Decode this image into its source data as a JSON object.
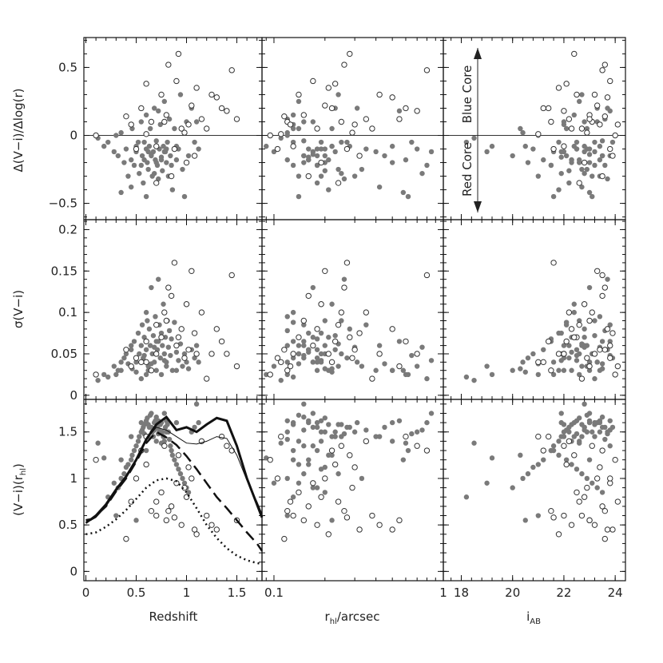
{
  "chart_data": {
    "type": "scatter",
    "layout": "3x3 panel grid",
    "columns": [
      {
        "xlabel": "Redshift",
        "xlim": [
          -0.02,
          1.75
        ],
        "xticks": [
          0,
          0.5,
          1,
          1.5
        ],
        "xticklabels": [
          "0",
          "0.5",
          "1",
          "1.5"
        ],
        "xscale": "linear"
      },
      {
        "xlabel": "r_hl/arcsec",
        "xlabel_main": "r",
        "xlabel_sub": "hl",
        "xlabel_rest": "/arcsec",
        "xlim": [
          0.085,
          1.0
        ],
        "xticks": [
          0.1,
          1
        ],
        "xticklabels": [
          "0.1",
          "1"
        ],
        "xscale": "log"
      },
      {
        "xlabel": "i_AB",
        "xlabel_main": "i",
        "xlabel_sub": "AB",
        "xlim": [
          17.3,
          24.4
        ],
        "xticks": [
          18,
          20,
          22,
          24
        ],
        "xticklabels": [
          "18",
          "20",
          "22",
          "24"
        ],
        "xscale": "linear"
      }
    ],
    "rows": [
      {
        "ylabel": "Δ(V−i)/Δlog(r)",
        "ylim": [
          -0.62,
          0.72
        ],
        "yticks": [
          -0.5,
          0,
          0.5
        ],
        "yticklabels": [
          "−0.5",
          "0",
          "0.5"
        ],
        "zero_line": true
      },
      {
        "ylabel": "σ(V−i)",
        "ylim": [
          -0.005,
          0.212
        ],
        "yticks": [
          0,
          0.05,
          0.1,
          0.15,
          0.2
        ],
        "yticklabels": [
          "0",
          "0.05",
          "0.1",
          "0.15",
          "0.2"
        ],
        "zero_line": false
      },
      {
        "ylabel": "(V−i)(r_hl)",
        "ylabel_main": "(V−i)(r",
        "ylabel_sub": "hl",
        "ylabel_end": ")",
        "ylim": [
          -0.1,
          1.85
        ],
        "yticks": [
          0,
          0.5,
          1,
          1.5
        ],
        "yticklabels": [
          "0",
          "0.5",
          "1",
          "1.5"
        ],
        "zero_line": false
      }
    ],
    "annotations": {
      "blue_core": "Blue Core",
      "red_core": "Red Core"
    },
    "series": [
      {
        "name": "filled",
        "marker": "filled circle",
        "color": "#7a7a7a"
      },
      {
        "name": "open",
        "marker": "open circle",
        "color": "#333333"
      }
    ],
    "model_curves": [
      {
        "style": "thick solid",
        "x": [
          0,
          0.05,
          0.1,
          0.2,
          0.3,
          0.4,
          0.5,
          0.6,
          0.7,
          0.8,
          0.9,
          1.0,
          1.1,
          1.2,
          1.3,
          1.4,
          1.5,
          1.6,
          1.7,
          1.75
        ],
        "y": [
          0.55,
          0.56,
          0.6,
          0.72,
          0.88,
          1.02,
          1.2,
          1.42,
          1.58,
          1.66,
          1.52,
          1.55,
          1.5,
          1.58,
          1.65,
          1.62,
          1.35,
          1.0,
          0.72,
          0.58
        ]
      },
      {
        "style": "thin solid",
        "x": [
          0,
          0.1,
          0.2,
          0.3,
          0.4,
          0.5,
          0.6,
          0.7,
          0.8,
          0.9,
          1.0,
          1.1,
          1.2,
          1.3,
          1.4,
          1.5,
          1.6,
          1.7,
          1.75
        ],
        "y": [
          0.52,
          0.58,
          0.7,
          0.86,
          1.02,
          1.2,
          1.42,
          1.55,
          1.52,
          1.45,
          1.38,
          1.37,
          1.4,
          1.45,
          1.43,
          1.25,
          0.98,
          0.75,
          0.62
        ]
      },
      {
        "style": "dashed",
        "x": [
          0,
          0.1,
          0.2,
          0.3,
          0.4,
          0.5,
          0.6,
          0.7,
          0.8,
          0.9,
          1.0,
          1.1,
          1.2,
          1.3,
          1.4,
          1.5,
          1.6,
          1.7,
          1.75
        ],
        "y": [
          0.52,
          0.6,
          0.7,
          0.86,
          1.0,
          1.18,
          1.38,
          1.5,
          1.44,
          1.36,
          1.24,
          1.1,
          0.95,
          0.8,
          0.68,
          0.55,
          0.42,
          0.3,
          0.22
        ]
      },
      {
        "style": "dotted",
        "x": [
          0,
          0.1,
          0.2,
          0.3,
          0.4,
          0.5,
          0.6,
          0.7,
          0.8,
          0.9,
          1.0,
          1.1,
          1.2,
          1.3,
          1.4,
          1.5,
          1.6,
          1.7,
          1.75
        ],
        "y": [
          0.4,
          0.42,
          0.48,
          0.56,
          0.66,
          0.78,
          0.9,
          0.98,
          1.0,
          0.97,
          0.85,
          0.68,
          0.5,
          0.36,
          0.25,
          0.17,
          0.12,
          0.09,
          0.08
        ]
      }
    ],
    "points": [
      [
        0.12,
        -0.02,
        0.018,
        1.38,
        0.11,
        18.5,
        0
      ],
      [
        0.18,
        -0.08,
        0.025,
        1.22,
        0.09,
        19.2,
        0
      ],
      [
        0.22,
        -0.05,
        0.022,
        0.8,
        0.13,
        18.2,
        0
      ],
      [
        0.28,
        -0.12,
        0.035,
        0.95,
        0.1,
        19.0,
        0
      ],
      [
        0.32,
        -0.15,
        0.03,
        0.9,
        0.18,
        20.0,
        0
      ],
      [
        0.35,
        0.02,
        0.04,
        1.0,
        0.12,
        20.4,
        0
      ],
      [
        0.38,
        -0.2,
        0.045,
        1.05,
        0.15,
        20.6,
        0
      ],
      [
        0.4,
        -0.1,
        0.05,
        1.12,
        0.2,
        20.8,
        0
      ],
      [
        0.42,
        -0.3,
        0.038,
        1.15,
        0.14,
        21.0,
        0
      ],
      [
        0.45,
        -0.18,
        0.055,
        1.2,
        0.16,
        21.2,
        0
      ],
      [
        0.46,
        0.05,
        0.032,
        1.25,
        0.22,
        20.3,
        0
      ],
      [
        0.48,
        -0.22,
        0.065,
        1.3,
        0.13,
        21.5,
        0
      ],
      [
        0.5,
        -0.12,
        0.04,
        1.35,
        0.17,
        21.6,
        0
      ],
      [
        0.52,
        -0.05,
        0.075,
        1.4,
        0.19,
        21.8,
        0
      ],
      [
        0.53,
        -0.28,
        0.05,
        1.45,
        0.25,
        21.9,
        0
      ],
      [
        0.55,
        0.1,
        0.06,
        1.5,
        0.12,
        22.0,
        0
      ],
      [
        0.56,
        -0.15,
        0.085,
        1.52,
        0.15,
        22.1,
        0
      ],
      [
        0.57,
        -0.35,
        0.045,
        1.55,
        0.18,
        22.2,
        0
      ],
      [
        0.58,
        -0.18,
        0.07,
        1.58,
        0.21,
        22.3,
        0
      ],
      [
        0.6,
        0.15,
        0.1,
        1.6,
        0.13,
        22.4,
        0
      ],
      [
        0.6,
        -0.1,
        0.055,
        1.62,
        0.16,
        22.5,
        0
      ],
      [
        0.61,
        -0.2,
        0.09,
        1.65,
        0.2,
        22.6,
        0
      ],
      [
        0.62,
        -0.25,
        0.035,
        1.58,
        0.24,
        22.7,
        0
      ],
      [
        0.63,
        -0.08,
        0.08,
        1.55,
        0.28,
        22.8,
        0
      ],
      [
        0.64,
        0.05,
        0.06,
        1.68,
        0.14,
        22.9,
        0
      ],
      [
        0.65,
        -0.14,
        0.13,
        1.7,
        0.17,
        23.0,
        0
      ],
      [
        0.66,
        -0.3,
        0.05,
        1.5,
        0.19,
        23.1,
        0
      ],
      [
        0.67,
        -0.12,
        0.072,
        1.45,
        0.23,
        23.2,
        0
      ],
      [
        0.68,
        0.2,
        0.04,
        1.6,
        0.31,
        23.3,
        0
      ],
      [
        0.69,
        -0.18,
        0.095,
        1.62,
        0.12,
        23.4,
        0
      ],
      [
        0.7,
        -0.04,
        0.065,
        1.66,
        0.15,
        23.5,
        0
      ],
      [
        0.71,
        -0.22,
        0.055,
        1.55,
        0.18,
        23.6,
        0
      ],
      [
        0.72,
        -0.32,
        0.14,
        1.48,
        0.26,
        23.7,
        0
      ],
      [
        0.73,
        -0.1,
        0.085,
        1.52,
        0.35,
        23.8,
        0
      ],
      [
        0.74,
        0.08,
        0.045,
        1.58,
        0.13,
        22.0,
        0
      ],
      [
        0.75,
        -0.16,
        0.075,
        1.6,
        0.16,
        21.9,
        0
      ],
      [
        0.76,
        -0.26,
        0.06,
        1.5,
        0.2,
        22.2,
        0
      ],
      [
        0.77,
        -0.08,
        0.11,
        1.45,
        0.22,
        22.4,
        0
      ],
      [
        0.78,
        0.25,
        0.05,
        1.4,
        0.14,
        22.6,
        0
      ],
      [
        0.79,
        -0.12,
        0.07,
        1.55,
        0.17,
        22.8,
        0
      ],
      [
        0.8,
        -0.2,
        0.04,
        1.62,
        0.19,
        23.0,
        0
      ],
      [
        0.81,
        -0.05,
        0.09,
        1.58,
        0.25,
        23.2,
        0
      ],
      [
        0.82,
        -0.3,
        0.058,
        1.5,
        0.3,
        23.4,
        0
      ],
      [
        0.83,
        0.12,
        0.078,
        1.42,
        0.12,
        23.6,
        0
      ],
      [
        0.84,
        -0.15,
        0.048,
        1.35,
        0.15,
        23.8,
        0
      ],
      [
        0.85,
        -0.22,
        0.068,
        1.3,
        0.18,
        21.5,
        0
      ],
      [
        0.86,
        -0.4,
        0.03,
        1.25,
        0.21,
        21.8,
        0
      ],
      [
        0.88,
        0.05,
        0.088,
        1.2,
        0.13,
        22.1,
        0
      ],
      [
        0.9,
        -0.18,
        0.052,
        1.15,
        0.16,
        22.3,
        0
      ],
      [
        0.92,
        -0.1,
        0.042,
        1.1,
        0.19,
        22.5,
        0
      ],
      [
        0.94,
        0.3,
        0.062,
        1.05,
        0.24,
        22.7,
        0
      ],
      [
        0.96,
        -0.25,
        0.035,
        1.0,
        0.33,
        22.9,
        0
      ],
      [
        0.98,
        -0.45,
        0.05,
        0.95,
        0.14,
        23.1,
        0
      ],
      [
        1.0,
        0.1,
        0.04,
        0.9,
        0.17,
        23.3,
        0
      ],
      [
        1.02,
        -0.15,
        0.032,
        0.85,
        0.2,
        23.5,
        0
      ],
      [
        1.05,
        0.2,
        0.055,
        1.5,
        0.23,
        23.7,
        0
      ],
      [
        1.08,
        -0.05,
        0.045,
        1.55,
        0.27,
        23.9,
        0
      ],
      [
        1.1,
        0.1,
        0.06,
        1.8,
        0.15,
        22.8,
        0
      ],
      [
        1.12,
        -0.1,
        0.04,
        1.6,
        0.18,
        23.0,
        0
      ],
      [
        0.3,
        0.0,
        0.025,
        0.6,
        0.12,
        21.0,
        0
      ],
      [
        0.5,
        -0.08,
        0.028,
        0.55,
        0.22,
        20.5,
        0
      ],
      [
        0.62,
        -0.12,
        0.03,
        1.45,
        0.4,
        22.0,
        0
      ],
      [
        0.7,
        -0.2,
        0.03,
        1.4,
        0.5,
        22.3,
        0
      ],
      [
        0.75,
        -0.18,
        0.025,
        1.38,
        0.6,
        22.6,
        0
      ],
      [
        0.8,
        -0.1,
        0.035,
        1.5,
        0.7,
        22.9,
        0
      ],
      [
        0.55,
        -0.22,
        0.02,
        1.6,
        0.8,
        23.2,
        0
      ],
      [
        0.65,
        -0.15,
        0.038,
        1.55,
        0.45,
        23.5,
        0
      ],
      [
        0.72,
        0.18,
        0.065,
        1.62,
        0.55,
        23.8,
        0
      ],
      [
        0.58,
        -0.05,
        0.048,
        1.48,
        0.65,
        22.5,
        0
      ],
      [
        0.68,
        -0.28,
        0.058,
        1.52,
        0.75,
        22.8,
        0
      ],
      [
        0.78,
        -0.12,
        0.042,
        1.7,
        0.85,
        21.9,
        0
      ],
      [
        0.9,
        -0.08,
        0.03,
        1.6,
        0.5,
        23.4,
        0
      ],
      [
        0.45,
        -0.38,
        0.06,
        1.45,
        0.42,
        22.7,
        0
      ],
      [
        0.35,
        -0.42,
        0.03,
        1.2,
        0.58,
        23.0,
        0
      ],
      [
        0.6,
        -0.45,
        0.025,
        1.3,
        0.62,
        21.6,
        0
      ],
      [
        0.6,
        0.01,
        0.04,
        1.45,
        0.11,
        21.0,
        1
      ],
      [
        0.65,
        0.1,
        0.03,
        0.65,
        0.12,
        21.5,
        1
      ],
      [
        0.7,
        -0.08,
        0.05,
        0.6,
        0.13,
        22.0,
        1
      ],
      [
        0.75,
        0.3,
        0.07,
        0.85,
        0.14,
        22.5,
        1
      ],
      [
        0.8,
        0.15,
        0.09,
        0.55,
        0.15,
        23.0,
        1
      ],
      [
        0.85,
        -0.3,
        0.12,
        0.7,
        0.16,
        23.5,
        1
      ],
      [
        0.9,
        0.4,
        0.06,
        0.95,
        0.17,
        23.8,
        1
      ],
      [
        0.95,
        0.05,
        0.08,
        0.5,
        0.18,
        22.3,
        1
      ],
      [
        1.0,
        -0.2,
        0.11,
        0.8,
        0.19,
        22.8,
        1
      ],
      [
        1.05,
        0.22,
        0.15,
        1.0,
        0.2,
        23.3,
        1
      ],
      [
        1.1,
        0.35,
        0.05,
        0.4,
        0.21,
        21.8,
        1
      ],
      [
        0.55,
        0.2,
        0.04,
        1.3,
        0.22,
        21.2,
        1
      ],
      [
        0.6,
        0.38,
        0.065,
        1.15,
        0.23,
        22.1,
        1
      ],
      [
        0.7,
        -0.35,
        0.085,
        0.75,
        0.24,
        22.6,
        1
      ],
      [
        0.78,
        0.1,
        0.1,
        1.35,
        0.25,
        23.1,
        1
      ],
      [
        0.82,
        0.52,
        0.13,
        0.65,
        0.26,
        23.6,
        1
      ],
      [
        0.88,
        -0.1,
        0.16,
        0.58,
        0.27,
        21.6,
        1
      ],
      [
        0.92,
        0.6,
        0.07,
        1.25,
        0.28,
        22.4,
        1
      ],
      [
        0.98,
        0.02,
        0.045,
        0.9,
        0.29,
        22.9,
        1
      ],
      [
        1.02,
        0.08,
        0.055,
        1.12,
        0.3,
        23.4,
        1
      ],
      [
        1.08,
        -0.15,
        0.075,
        0.45,
        0.32,
        23.9,
        1
      ],
      [
        1.15,
        0.12,
        0.1,
        1.4,
        0.35,
        22.2,
        1
      ],
      [
        1.2,
        0.05,
        0.02,
        0.6,
        0.38,
        22.7,
        1
      ],
      [
        1.25,
        0.3,
        0.05,
        0.5,
        0.42,
        23.2,
        1
      ],
      [
        1.3,
        0.28,
        0.08,
        0.45,
        0.5,
        23.7,
        1
      ],
      [
        1.35,
        0.2,
        0.065,
        1.45,
        0.6,
        21.4,
        1
      ],
      [
        1.4,
        0.18,
        0.05,
        1.35,
        0.7,
        22.0,
        1
      ],
      [
        1.45,
        0.48,
        0.145,
        1.3,
        0.8,
        23.5,
        1
      ],
      [
        1.5,
        0.12,
        0.035,
        0.55,
        0.55,
        23.0,
        1
      ],
      [
        0.1,
        0.0,
        0.025,
        1.2,
        0.095,
        24.0,
        1
      ],
      [
        0.5,
        -0.1,
        0.045,
        1.0,
        0.105,
        23.8,
        1
      ],
      [
        0.4,
        0.14,
        0.055,
        0.35,
        0.115,
        23.6,
        1
      ],
      [
        0.45,
        0.08,
        0.035,
        0.75,
        0.125,
        24.1,
        1
      ]
    ]
  }
}
